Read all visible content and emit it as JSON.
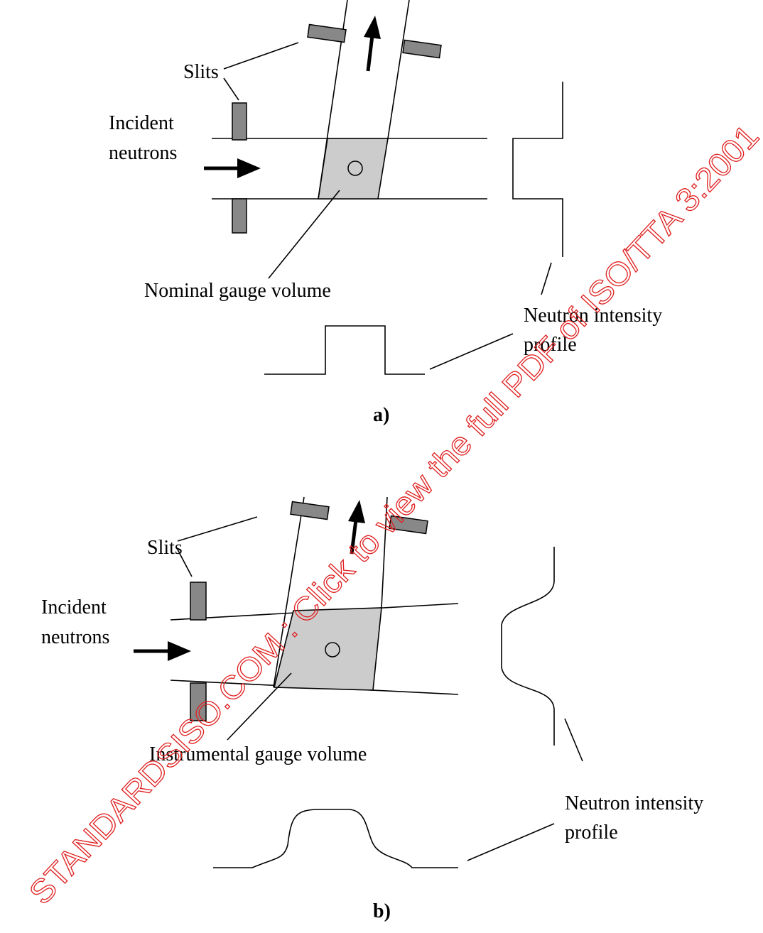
{
  "panels": [
    {
      "caption": "a)",
      "slits": "Slits",
      "incident": [
        "Incident",
        "neutrons"
      ],
      "gauge": "Nominal gauge volume",
      "profile": [
        "Neutron intensity",
        "profile"
      ]
    },
    {
      "caption": "b)",
      "slits": "Slits",
      "incident": [
        "Incident",
        "neutrons"
      ],
      "gauge": "Instrumental gauge volume",
      "profile": [
        "Neutron intensity",
        "profile"
      ]
    }
  ],
  "watermark": "STANDARDSISO.COM : Click to view the full PDF of ISO/TTA 3:2001"
}
